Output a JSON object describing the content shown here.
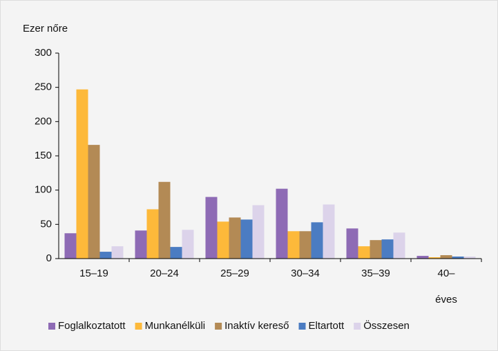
{
  "chart_data": {
    "type": "bar",
    "y_label": "Ezer nőre",
    "categories": [
      "15–19",
      "20–24",
      "25–29",
      "30–34",
      "35–39",
      "40–\néves"
    ],
    "series": [
      {
        "name": "Foglalkoztatott",
        "color": "#8e6bb5",
        "values": [
          37,
          41,
          90,
          102,
          44,
          4
        ]
      },
      {
        "name": "Munkanélküli",
        "color": "#fdb93a",
        "values": [
          247,
          72,
          54,
          40,
          18,
          2
        ]
      },
      {
        "name": "Inaktív kereső",
        "color": "#b38a55",
        "values": [
          166,
          112,
          60,
          40,
          27,
          5
        ]
      },
      {
        "name": "Eltartott",
        "color": "#4b7cc2",
        "values": [
          10,
          17,
          57,
          53,
          28,
          3
        ]
      },
      {
        "name": "Összesen",
        "color": "#dcd3ea",
        "values": [
          18,
          42,
          78,
          79,
          38,
          3
        ]
      }
    ],
    "ylim": [
      0,
      300
    ],
    "yticks": [
      0,
      50,
      100,
      150,
      200,
      250,
      300
    ],
    "legend": "bottom"
  }
}
